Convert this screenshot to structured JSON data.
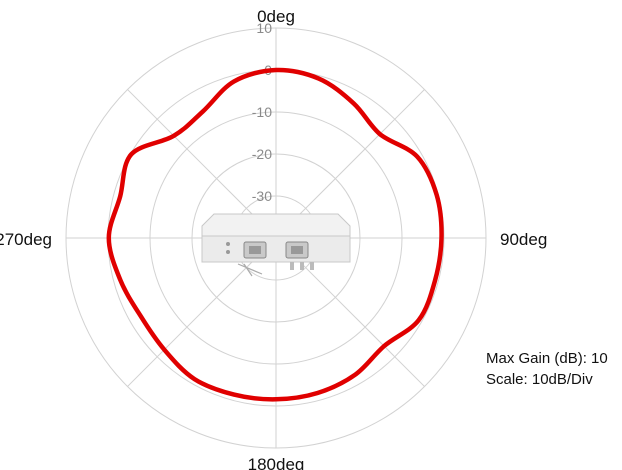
{
  "chart_data": {
    "type": "polar",
    "title": "",
    "angle_labels": [
      "0deg",
      "90deg",
      "180deg",
      "270deg"
    ],
    "radial_ticks": [
      10,
      0,
      -10,
      -20,
      -30
    ],
    "radial_range_db": [
      -40,
      10
    ],
    "grid": true,
    "spokes_every_deg": 45,
    "series": [
      {
        "color": "#e00000",
        "angles_deg": [
          0,
          15,
          30,
          45,
          60,
          75,
          90,
          105,
          120,
          135,
          150,
          165,
          180,
          195,
          210,
          225,
          240,
          255,
          270,
          285,
          300,
          315,
          330,
          345
        ],
        "gain_db": [
          0.0,
          -0.7,
          -3.0,
          -5.0,
          -1.2,
          -0.4,
          -0.6,
          -0.8,
          -0.8,
          -3.6,
          -2.4,
          -1.8,
          -1.6,
          -1.4,
          -1.2,
          -2.4,
          -2.8,
          -1.6,
          -0.2,
          -1.6,
          -0.2,
          -5.6,
          -5.2,
          -1.4
        ]
      }
    ]
  },
  "info": {
    "max_gain_text": "Max Gain (dB): 10",
    "scale_text": "Scale: 10dB/Div"
  },
  "colors": {
    "grid": "#d2d2d2",
    "trace": "#e00000",
    "device_body": "#f0f0f0"
  },
  "icon": "outdoor-access-point-device"
}
